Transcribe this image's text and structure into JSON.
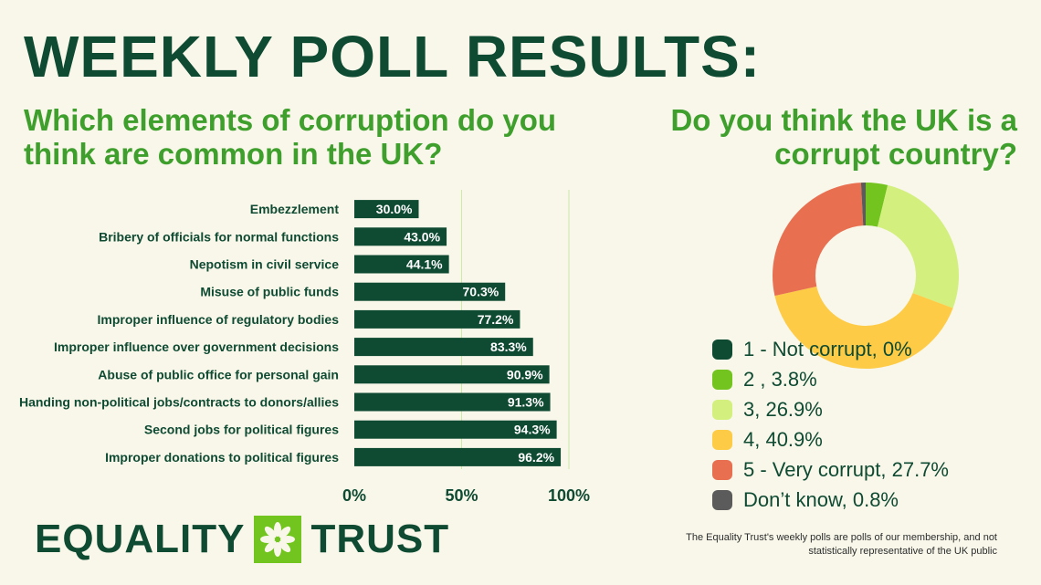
{
  "title": "WEEKLY POLL RESULTS:",
  "left_question": "Which elements of corruption do you think are common in the UK?",
  "right_question": "Do you think the UK is a corrupt country?",
  "logo": {
    "word1": "EQUALITY",
    "word2": "TRUST",
    "icon": "asterisk-flower-icon"
  },
  "footnote": "The Equality Trust's weekly polls are polls of our membership, and not statistically representative of the UK public",
  "colors": {
    "bar": "#0f4a32",
    "grid": "#cdeaa8",
    "heading": "#3f9f2c",
    "background": "#f8f7ea"
  },
  "chart_data": [
    {
      "type": "bar",
      "orientation": "horizontal",
      "title": "Which elements of corruption do you think are common in the UK?",
      "categories": [
        "Embezzlement",
        "Bribery of officials for normal functions",
        "Nepotism in civil service",
        "Misuse of public funds",
        "Improper influence of regulatory bodies",
        "Improper influence over government decisions",
        "Abuse of public office for personal gain",
        "Handing non-political jobs/contracts to donors/allies",
        "Second jobs for political figures",
        "Improper donations to political figures"
      ],
      "values": [
        30.0,
        43.0,
        44.1,
        70.3,
        77.2,
        83.3,
        90.9,
        91.3,
        94.3,
        96.2
      ],
      "data_labels": [
        "30.0%",
        "43.0%",
        "44.1%",
        "70.3%",
        "77.2%",
        "83.3%",
        "90.9%",
        "91.3%",
        "94.3%",
        "96.2%"
      ],
      "xlim": [
        0,
        100
      ],
      "xticks": [
        "0%",
        "50%",
        "100%"
      ],
      "xtick_values": [
        0,
        50,
        100
      ],
      "grid": true
    },
    {
      "type": "pie",
      "style": "donut",
      "title": "Do you think the UK is a corrupt country?",
      "labels": [
        "1 - Not corrupt, 0%",
        "2 , 3.8%",
        "3, 26.9%",
        "4, 40.9%",
        "5 - Very corrupt, 27.7%",
        "Don’t know, 0.8%"
      ],
      "values": [
        0,
        3.8,
        26.9,
        40.9,
        27.7,
        0.8
      ],
      "colors": [
        "#0f4a32",
        "#73c41e",
        "#d3ef7d",
        "#fdcb45",
        "#e86f50",
        "#5b5b5b"
      ],
      "legend_position": "bottom-left"
    }
  ]
}
